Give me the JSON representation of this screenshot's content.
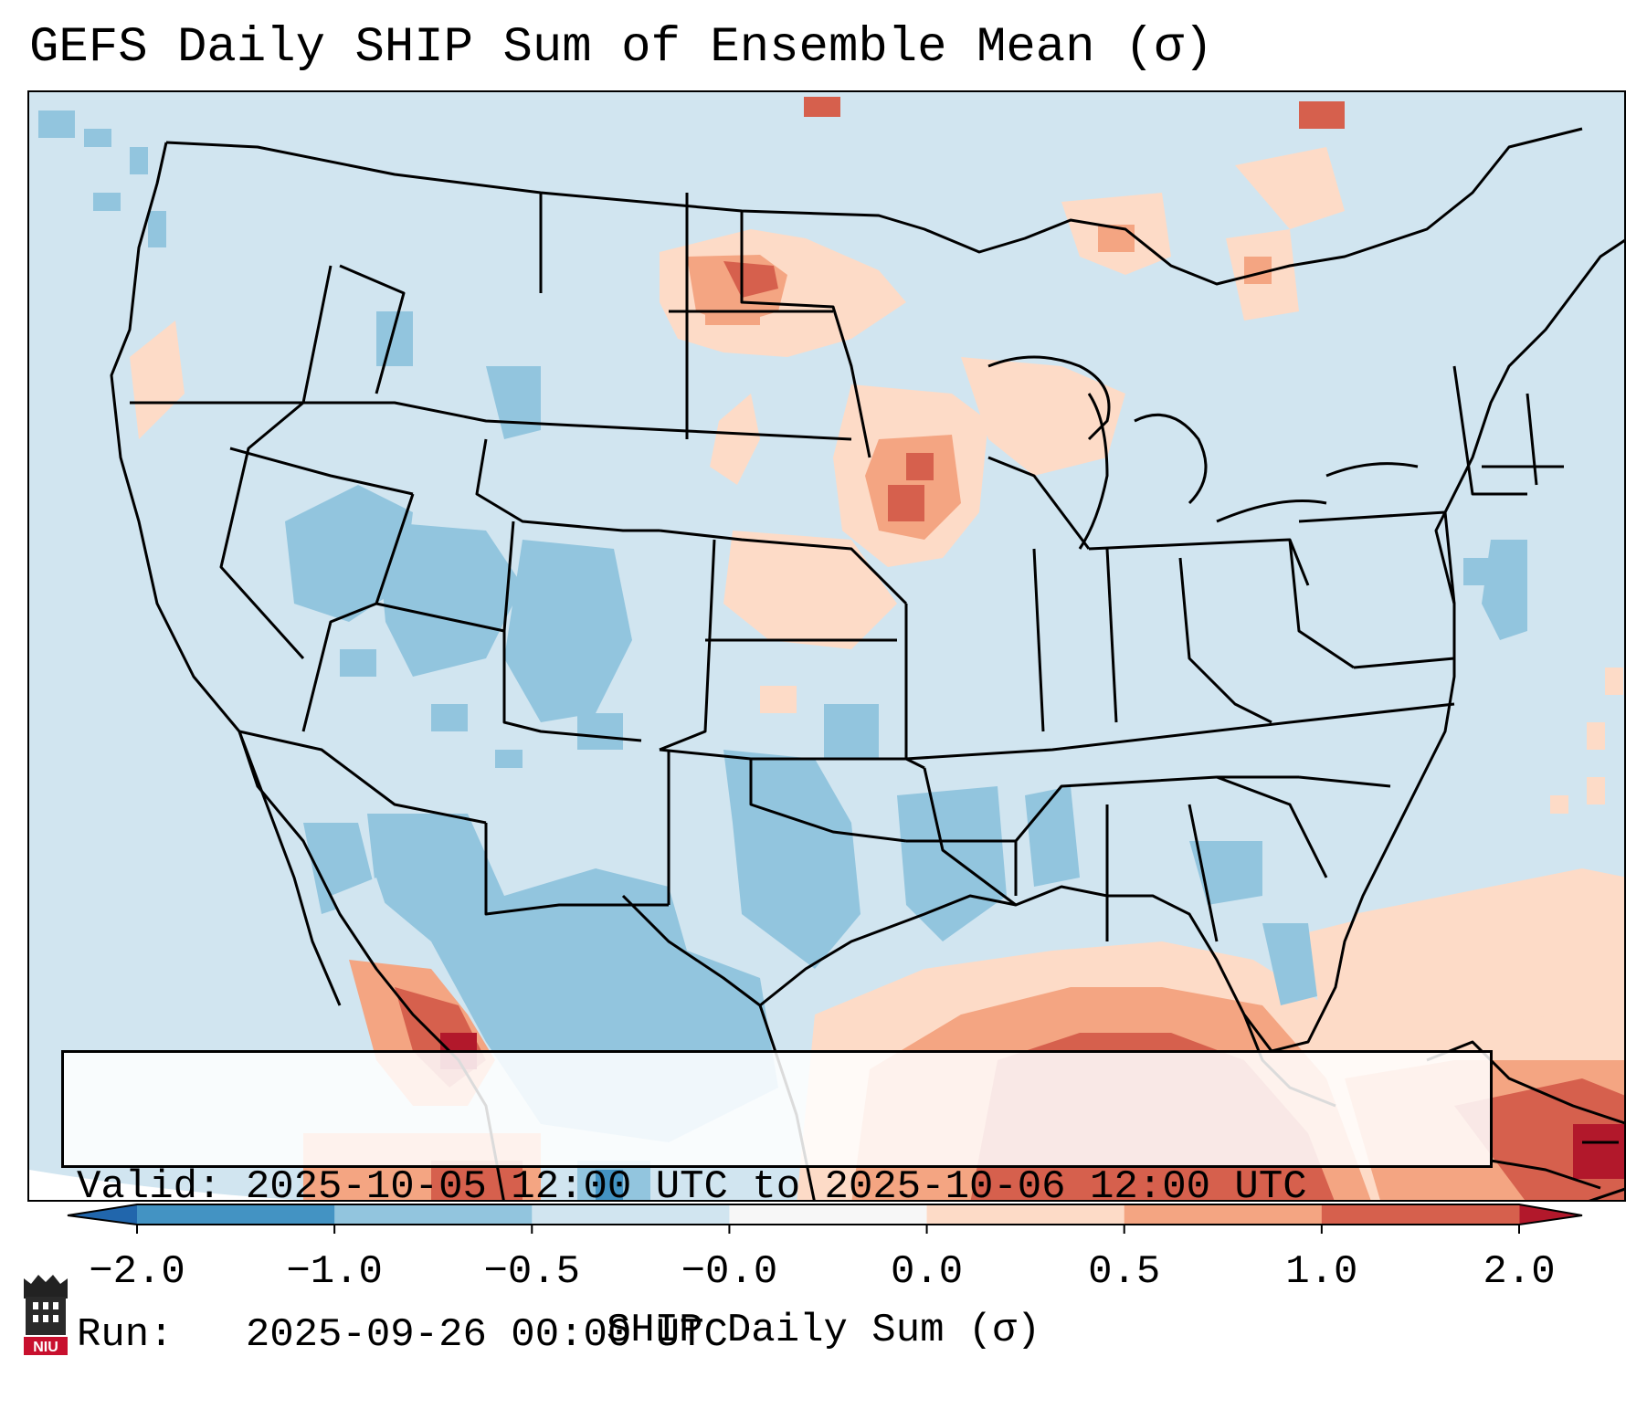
{
  "title": "GEFS Daily SHIP Sum of Ensemble Mean (σ)",
  "info": {
    "valid_label": "Valid:",
    "valid_value": "2025-10-05 12:00 UTC to 2025-10-06 12:00 UTC",
    "run_label": "Run:",
    "run_value": "2025-09-26 00:00 UTC"
  },
  "colorbar": {
    "label": "SHIP Daily Sum (σ)",
    "ticks": [
      "−2.0",
      "−1.0",
      "−0.5",
      "−0.0",
      "0.0",
      "0.5",
      "1.0",
      "2.0"
    ],
    "bins": [
      {
        "range": "-2.0 to -1.0",
        "color": "#4393c3"
      },
      {
        "range": "-1.0 to -0.5",
        "color": "#92c5de"
      },
      {
        "range": "-0.5 to -0.0",
        "color": "#d1e5f0"
      },
      {
        "range": "-0.0 to 0.0",
        "color": "#f7f7f7"
      },
      {
        "range": "0.0 to 0.5",
        "color": "#fddbc7"
      },
      {
        "range": "0.5 to 1.0",
        "color": "#f4a582"
      },
      {
        "range": "1.0 to 2.0",
        "color": "#d6604d"
      }
    ],
    "under_color": "#2166ac",
    "over_color": "#b2182b"
  },
  "logo": {
    "text": "NIU"
  },
  "map": {
    "icons": [
      "state-boundaries",
      "coastlines"
    ],
    "regions": [
      {
        "name": "north-dakota-minnesota-positive",
        "level": "0.5 to 2.0"
      },
      {
        "name": "iowa-positive",
        "level": "0.5 to 1.0"
      },
      {
        "name": "gulf-of-mexico-positive",
        "level": "0.5 to 2.0"
      },
      {
        "name": "caribbean-positive",
        "level": "1.0 to 2.0"
      },
      {
        "name": "southwest-negative",
        "level": "-1.0 to -0.5"
      },
      {
        "name": "texas-negative",
        "level": "-1.0 to -0.5"
      }
    ]
  }
}
